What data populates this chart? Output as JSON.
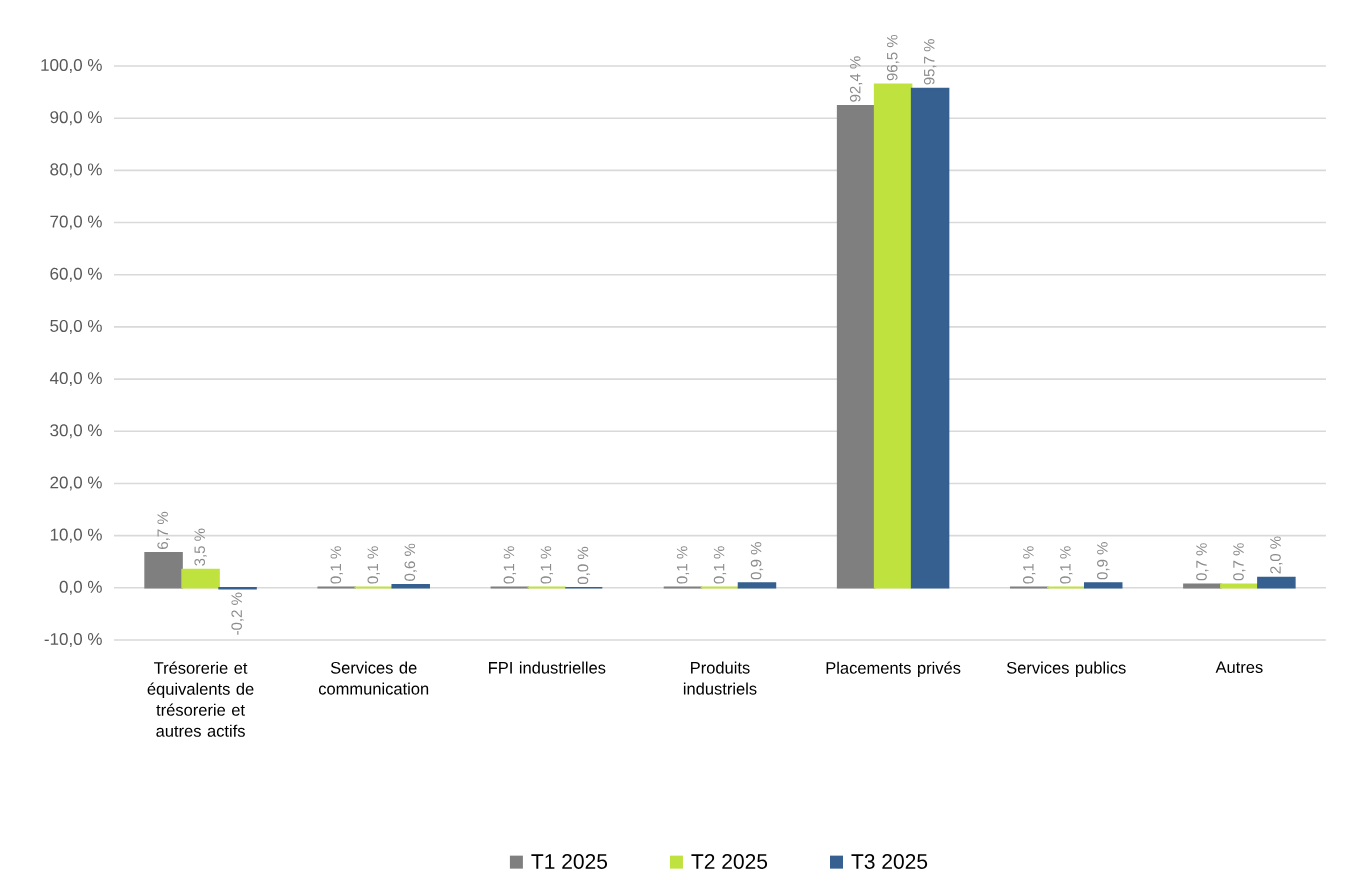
{
  "chart_data": {
    "type": "bar",
    "categories": [
      "Trésorerie et équivalents de trésorerie et autres actifs",
      "Services de communication",
      "FPI industrielles",
      "Produits industriels",
      "Placements privés",
      "Services publics",
      "Autres"
    ],
    "series": [
      {
        "name": "T1 2025",
        "color": "#7f7f7f",
        "values": [
          6.7,
          0.1,
          0.1,
          0.1,
          92.4,
          0.1,
          0.7
        ],
        "value_labels": [
          "6,7 %",
          "0,1 %",
          "0,1 %",
          "0,1 %",
          "92,4 %",
          "0,1 %",
          "0,7 %"
        ]
      },
      {
        "name": "T2 2025",
        "color": "#bfe23e",
        "values": [
          3.5,
          0.1,
          0.1,
          0.1,
          96.5,
          0.1,
          0.7
        ],
        "value_labels": [
          "3,5 %",
          "0,1 %",
          "0,1 %",
          "0,1 %",
          "96,5 %",
          "0,1 %",
          "0,7 %"
        ]
      },
      {
        "name": "T3 2025",
        "color": "#35608f",
        "values": [
          -0.2,
          0.6,
          0.0,
          0.9,
          95.7,
          0.9,
          2.0
        ],
        "value_labels": [
          "-0,2 %",
          "0,6 %",
          "0,0 %",
          "0,9 %",
          "95,7 %",
          "0,9 %",
          "2,0 %"
        ]
      }
    ],
    "ylim": [
      -10,
      100
    ],
    "yticks": [
      {
        "value": -10,
        "label": "-10,0 %"
      },
      {
        "value": 0,
        "label": "0,0 %"
      },
      {
        "value": 10,
        "label": "10,0 %"
      },
      {
        "value": 20,
        "label": "20,0 %"
      },
      {
        "value": 30,
        "label": "30,0 %"
      },
      {
        "value": 40,
        "label": "40,0 %"
      },
      {
        "value": 50,
        "label": "50,0 %"
      },
      {
        "value": 60,
        "label": "60,0 %"
      },
      {
        "value": 70,
        "label": "70,0 %"
      },
      {
        "value": 80,
        "label": "80,0 %"
      },
      {
        "value": 90,
        "label": "90,0 %"
      },
      {
        "value": 100,
        "label": "100,0 %"
      }
    ],
    "grid": "y",
    "legend": "bottom"
  }
}
